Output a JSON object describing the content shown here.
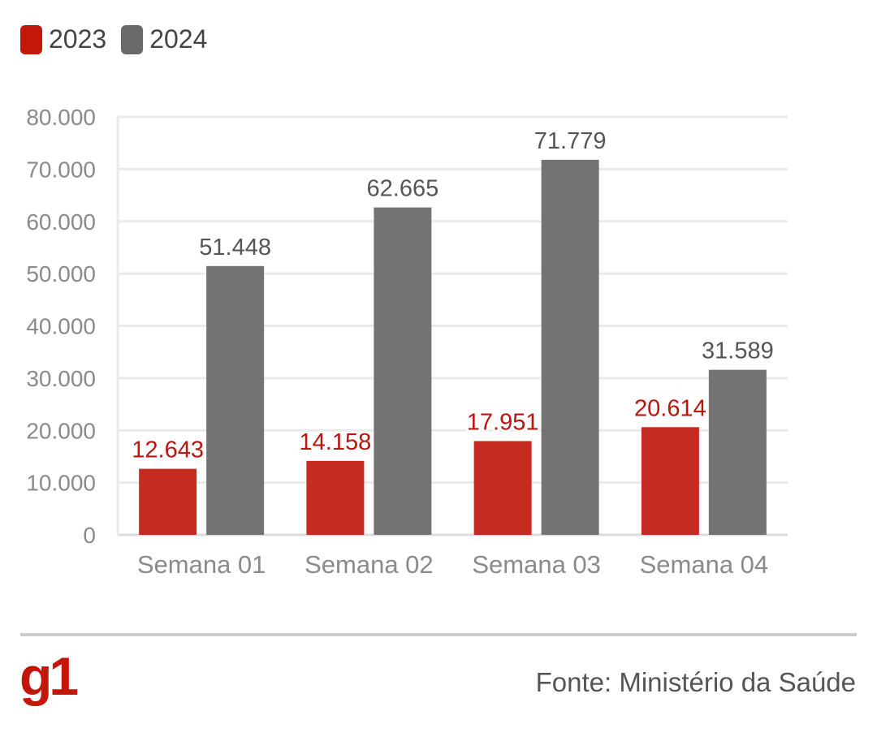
{
  "legend": [
    {
      "label": "2023",
      "color": "#c4170c"
    },
    {
      "label": "2024",
      "color": "#6a6a6a"
    }
  ],
  "chart_data": {
    "type": "bar",
    "categories": [
      "Semana 01",
      "Semana 02",
      "Semana 03",
      "Semana 04"
    ],
    "series": [
      {
        "name": "2023",
        "color": "#c62b22",
        "label_color": "#b8160f",
        "values": [
          12643,
          14158,
          17951,
          20614
        ],
        "labels": [
          "12.643",
          "14.158",
          "17.951",
          "20.614"
        ]
      },
      {
        "name": "2024",
        "color": "#737373",
        "label_color": "#555555",
        "values": [
          51448,
          62665,
          71779,
          31589
        ],
        "labels": [
          "51.448",
          "62.665",
          "71.779",
          "31.589"
        ]
      }
    ],
    "yticks": [
      0,
      10000,
      20000,
      30000,
      40000,
      50000,
      60000,
      70000,
      80000
    ],
    "ytick_labels": [
      "0",
      "10.000",
      "20.000",
      "30.000",
      "40.000",
      "50.000",
      "60.000",
      "70.000",
      "80.000"
    ],
    "ylim": [
      0,
      80000
    ],
    "grid": true,
    "legend_position": "top-left"
  },
  "footer": {
    "logo": "g1",
    "source": "Fonte: Ministério da Saúde"
  }
}
